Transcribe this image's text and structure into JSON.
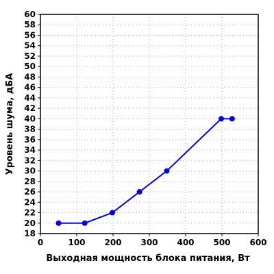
{
  "chart_data": {
    "type": "line",
    "xlabel": "Выходная мощность блока питания, Вт",
    "ylabel": "Уровень шума, дБА",
    "xlim": [
      0,
      600
    ],
    "ylim": [
      18,
      60
    ],
    "x_ticks": [
      0,
      100,
      200,
      300,
      400,
      500,
      600
    ],
    "y_ticks": [
      18,
      20,
      22,
      24,
      26,
      28,
      30,
      32,
      34,
      36,
      38,
      40,
      42,
      44,
      46,
      48,
      50,
      52,
      54,
      56,
      58,
      60
    ],
    "grid": true,
    "grid_style": "dotted",
    "series": [
      {
        "color": "#0000ee",
        "x": [
          50,
          122,
          198,
          273,
          348,
          498,
          528
        ],
        "y": [
          20,
          20,
          22,
          26,
          30,
          40,
          40
        ]
      }
    ]
  }
}
